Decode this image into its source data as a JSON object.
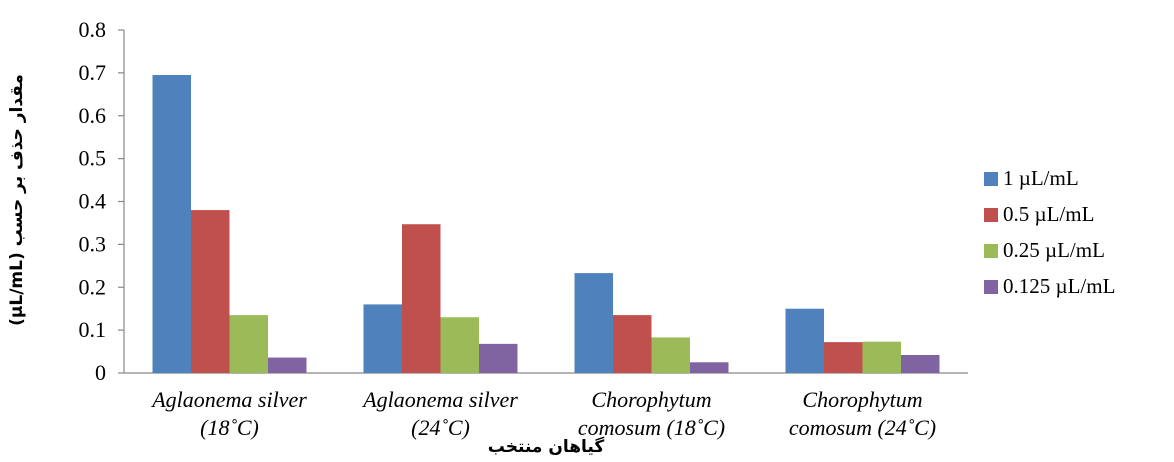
{
  "chart_data": {
    "type": "bar",
    "title": "",
    "xlabel": "گیاهان منتخب",
    "ylabel": "مقدار حذف بر حسب  (µL/mL)",
    "ylim": [
      0,
      0.8
    ],
    "yticks": [
      "0",
      "0.1",
      "0.2",
      "0.3",
      "0.4",
      "0.5",
      "0.6",
      "0.7",
      "0.8"
    ],
    "grid": false,
    "legend_position": "right",
    "categories": [
      [
        "Aglaonema silver",
        "(18˚C)"
      ],
      [
        "Aglaonema silver",
        "(24˚C)"
      ],
      [
        "Chorophytum",
        "comosum (18˚C)"
      ],
      [
        "Chorophytum",
        "comosum (24˚C)"
      ]
    ],
    "series": [
      {
        "name": "1 µL/mL",
        "color": "#4F81BD",
        "values": [
          0.695,
          0.16,
          0.233,
          0.15
        ]
      },
      {
        "name": "0.5 µL/mL",
        "color": "#C0504D",
        "values": [
          0.38,
          0.347,
          0.135,
          0.072
        ]
      },
      {
        "name": "0.25 µL/mL",
        "color": "#9BBB59",
        "values": [
          0.135,
          0.13,
          0.083,
          0.073
        ]
      },
      {
        "name": "0.125 µL/mL",
        "color": "#8064A2",
        "values": [
          0.036,
          0.068,
          0.025,
          0.042
        ]
      }
    ]
  }
}
